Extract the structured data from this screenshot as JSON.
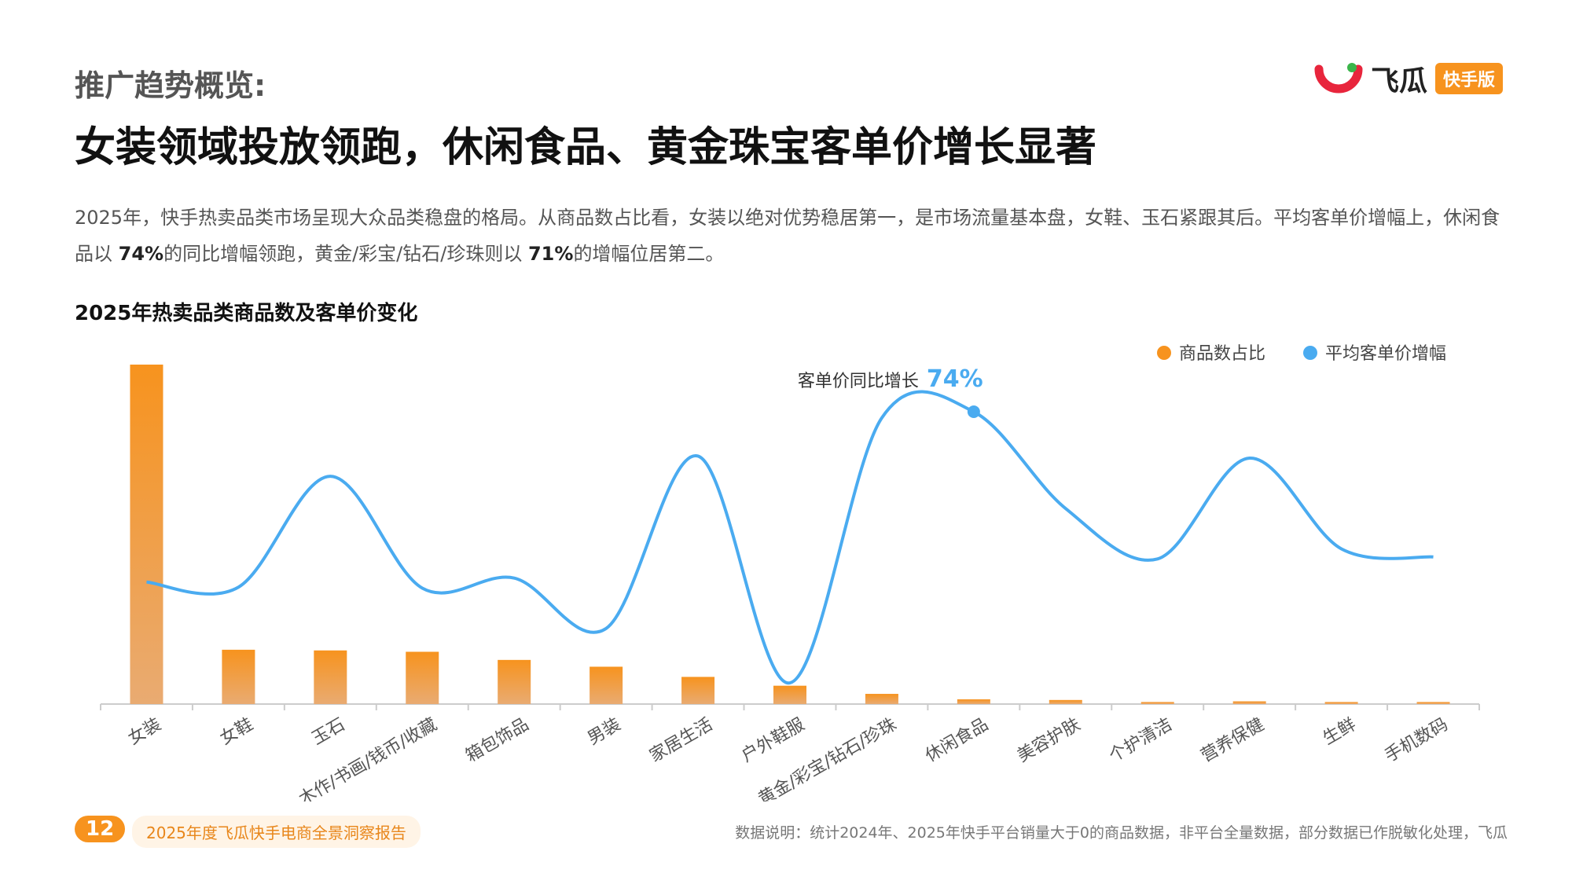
{
  "header": {
    "kicker": "推广趋势概览:",
    "title": "女装领域投放领跑，休闲食品、黄金珠宝客单价增长显著",
    "brand": "飞瓜",
    "brand_tag": "快手版"
  },
  "description": [
    "2025年，快手热卖品类市场呈现大众品类稳盘的格局。从商品数占比看，女装以绝对优势稳居第一，是市场流量基本盘，女鞋、玉石紧跟其后。平均客单价增幅上，休闲食品以 ",
    "74%",
    "的同比增幅领跑，黄金/彩宝/钻石/珍珠则以 ",
    "71%",
    "的增幅位居第二。"
  ],
  "chart_data": {
    "type": "bar-line",
    "title": "2025年热卖品类商品数及客单价变化",
    "categories": [
      "女装",
      "女鞋",
      "玉石",
      "木作/书画/钱币/收藏",
      "箱包饰品",
      "男装",
      "家居生活",
      "户外鞋服",
      "黄金/彩宝/钻石/珍珠",
      "休闲食品",
      "美容护肤",
      "个护清洁",
      "营养保健",
      "生鲜",
      "手机数码"
    ],
    "series": [
      {
        "name": "商品数占比",
        "type": "bar",
        "color": "#f7931e",
        "values": [
          50,
          8,
          7.9,
          7.7,
          6.5,
          5.5,
          4,
          2.7,
          1.5,
          0.7,
          0.6,
          0.3,
          0.4,
          0.3,
          0.3
        ]
      },
      {
        "name": "平均客单价增幅",
        "type": "line",
        "axis": "y2",
        "color": "#4aabf0",
        "values": [
          -10.5,
          -13,
          42,
          -13.5,
          -8.5,
          -33.5,
          52,
          -60.5,
          71,
          74,
          26,
          1,
          51,
          6,
          2
        ],
        "value_labels": [
          null,
          null,
          null,
          null,
          null,
          null,
          null,
          null,
          null,
          "74%",
          null,
          null,
          null,
          null,
          null
        ]
      }
    ],
    "annotation": "客单价同比增长",
    "ylim": [
      0,
      50
    ],
    "y2lim": [
      -71,
      97.4
    ],
    "legend": "top-right"
  },
  "footer": {
    "page": "12",
    "report": "2025年度飞瓜快手电商全景洞察报告",
    "note": "数据说明：统计2024年、2025年快手平台销量大于0的商品数据，非平台全量数据，部分数据已作脱敏化处理，飞瓜"
  }
}
